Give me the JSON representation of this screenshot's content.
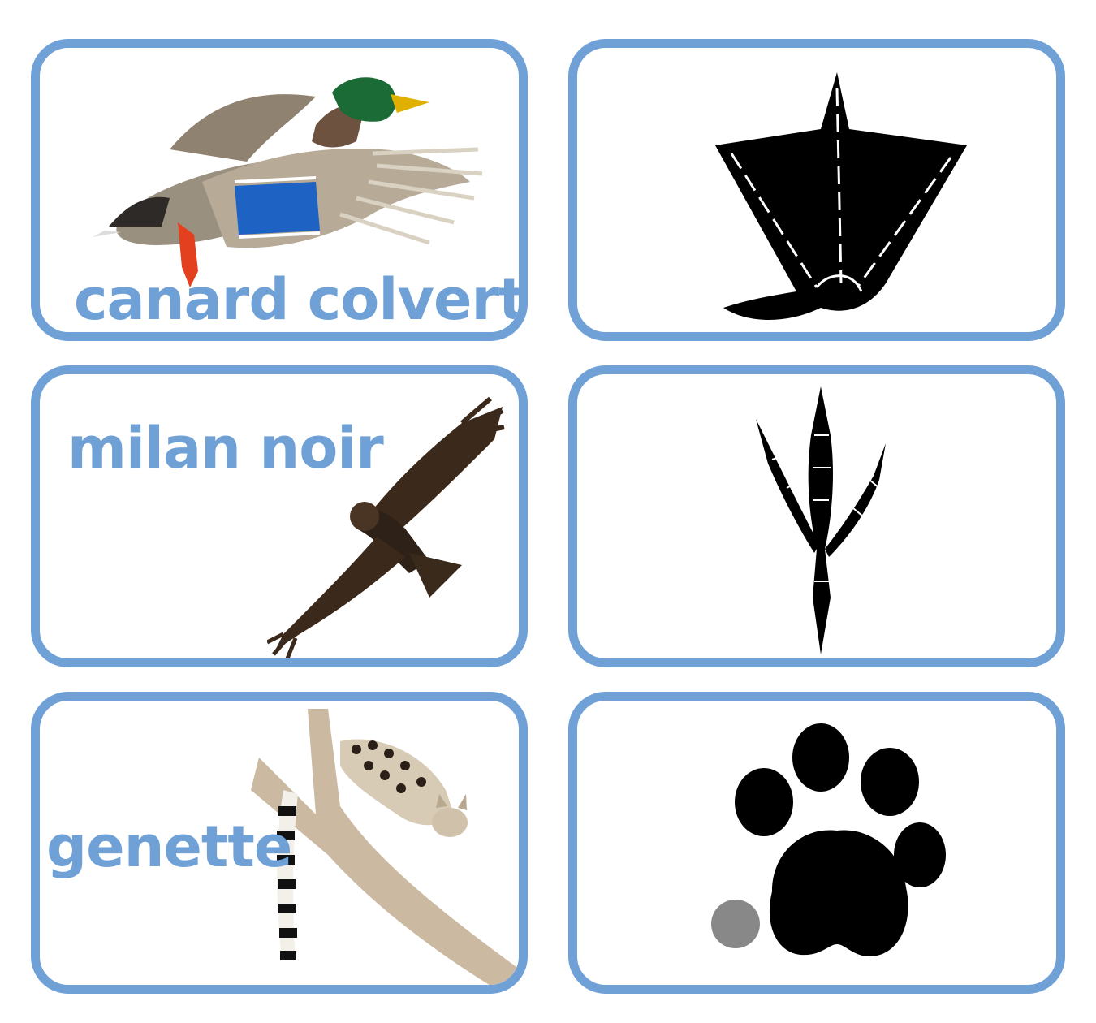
{
  "cards": [
    {
      "label": "canard colvert",
      "picture": "mallard-duck-flying"
    },
    {
      "label": "",
      "picture": "duck-webbed-footprint"
    },
    {
      "label": "milan noir",
      "picture": "black-kite-soaring"
    },
    {
      "label": "",
      "picture": "bird-claw-footprint"
    },
    {
      "label": "genette",
      "picture": "genet-on-branch"
    },
    {
      "label": "",
      "picture": "paw-print"
    }
  ],
  "colors": {
    "frame": "#6fa0d6",
    "label": "#6fa0d6",
    "print": "#000000"
  }
}
